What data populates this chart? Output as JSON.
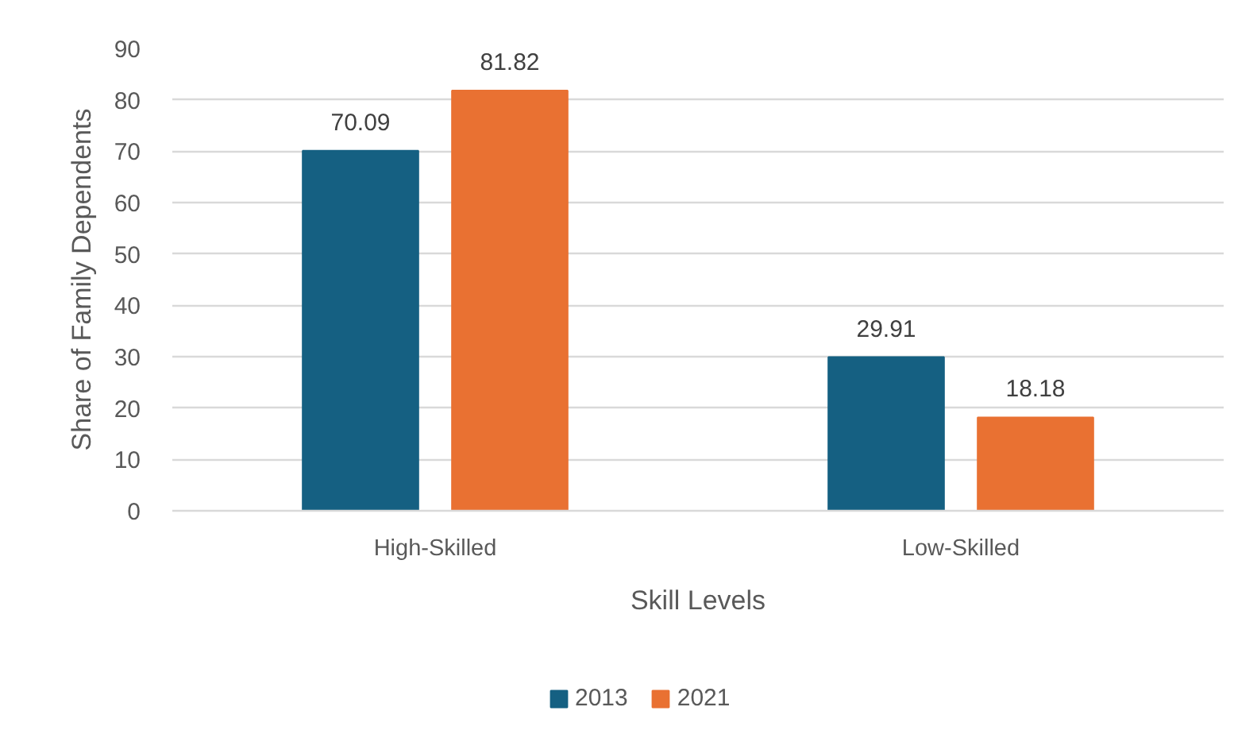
{
  "chart_data": {
    "type": "bar",
    "categories": [
      "High-Skilled",
      "Low-Skilled"
    ],
    "series": [
      {
        "name": "2013",
        "color": "#156082",
        "values": [
          70.09,
          29.91
        ]
      },
      {
        "name": "2021",
        "color": "#e97132",
        "values": [
          81.82,
          18.18
        ]
      }
    ],
    "xlabel": "Skill Levels",
    "ylabel": "Share of Family Dependents",
    "ylim": [
      0,
      90
    ],
    "yticks": [
      0,
      10,
      20,
      30,
      40,
      50,
      60,
      70,
      80,
      90
    ],
    "grid": "y",
    "legend": "bottom",
    "data_labels": true
  }
}
